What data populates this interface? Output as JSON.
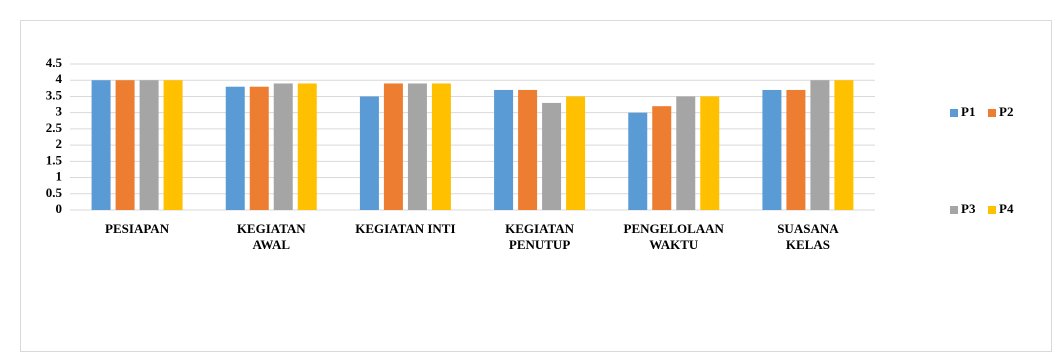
{
  "chart_data": {
    "type": "bar",
    "categories": [
      "PESIAPAN",
      "KEGIATAN\nAWAL",
      "KEGIATAN INTI",
      "KEGIATAN\nPENUTUP",
      "PENGELOLAAN\nWAKTU",
      "SUASANA\nKELAS"
    ],
    "series": [
      {
        "name": "P1",
        "color": "#5b9bd5",
        "values": [
          4,
          3.8,
          3.5,
          3.7,
          3,
          3.7
        ]
      },
      {
        "name": "P2",
        "color": "#ed7d31",
        "values": [
          4,
          3.8,
          3.9,
          3.7,
          3.2,
          3.7
        ]
      },
      {
        "name": "P3",
        "color": "#a5a5a5",
        "values": [
          4,
          3.9,
          3.9,
          3.3,
          3.5,
          4
        ]
      },
      {
        "name": "P4",
        "color": "#ffc000",
        "values": [
          4,
          3.9,
          3.9,
          3.5,
          3.5,
          4
        ]
      }
    ],
    "ylim": [
      0,
      4.5
    ],
    "yticks": [
      0,
      0.5,
      1,
      1.5,
      2,
      2.5,
      3,
      3.5,
      4,
      4.5
    ],
    "grid": true,
    "legend": "right"
  }
}
